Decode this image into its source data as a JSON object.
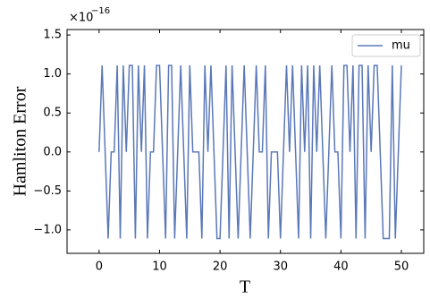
{
  "chart_data": {
    "type": "line",
    "ylabel": "Hamliton Error",
    "xlabel": "T",
    "y_offset_base": "×10",
    "y_offset_exponent": "−16",
    "x": [
      0,
      0.5,
      1,
      1.5,
      2,
      2.5,
      3,
      3.5,
      4,
      4.5,
      5,
      5.5,
      6,
      6.5,
      7,
      7.5,
      8,
      8.5,
      9,
      9.5,
      10,
      10.5,
      11,
      11.5,
      12,
      12.5,
      13,
      13.5,
      14,
      14.5,
      15,
      15.5,
      16,
      16.5,
      17,
      17.5,
      18,
      18.5,
      19,
      19.5,
      20,
      20.5,
      21,
      21.5,
      22,
      22.5,
      23,
      23.5,
      24,
      24.5,
      25,
      25.5,
      26,
      26.5,
      27,
      27.5,
      28,
      28.5,
      29,
      29.5,
      30,
      30.5,
      31,
      31.5,
      32,
      32.5,
      33,
      33.5,
      34,
      34.5,
      35,
      35.5,
      36,
      36.5,
      37,
      37.5,
      38,
      38.5,
      39,
      39.5,
      40,
      40.5,
      41,
      41.5,
      42,
      42.5,
      43,
      43.5,
      44,
      44.5,
      45,
      45.5,
      46,
      46.5,
      47,
      47.5,
      48,
      48.5,
      49,
      49.5,
      50
    ],
    "series": [
      {
        "name": "mu",
        "color": "#5a78b8",
        "values": [
          0,
          1.11,
          0,
          -1.11,
          0,
          0,
          1.11,
          -1.11,
          1.11,
          0,
          1.11,
          1.11,
          -1.11,
          1.11,
          0,
          1.11,
          -1.11,
          0,
          0,
          1.11,
          1.11,
          0,
          -1.11,
          1.11,
          1.11,
          -1.11,
          0,
          1.11,
          0,
          -1.11,
          1.11,
          0,
          0,
          0,
          -1.11,
          1.11,
          0,
          1.11,
          0,
          -1.11,
          -1.11,
          0,
          1.11,
          -1.11,
          1.11,
          0,
          -1.11,
          0,
          1.11,
          0,
          -1.11,
          0,
          1.11,
          0,
          0,
          1.11,
          -1.11,
          0,
          0,
          0,
          -1.11,
          0,
          1.11,
          0,
          1.11,
          0,
          -1.11,
          1.11,
          0,
          1.11,
          -1.11,
          1.11,
          0,
          1.11,
          0,
          -1.11,
          0,
          1.11,
          0,
          0,
          -1.11,
          1.11,
          1.11,
          0,
          1.11,
          -1.11,
          1.11,
          1.11,
          -1.11,
          1.11,
          0,
          1.11,
          1.11,
          0,
          -1.11,
          -1.11,
          -1.11,
          1.11,
          -1.11,
          0,
          1.11
        ]
      }
    ],
    "xlim": [
      -5.3,
      53.7
    ],
    "xticks": [
      0,
      10,
      20,
      30,
      40,
      50
    ],
    "ylim": [
      -1.3,
      1.57
    ],
    "yticks": [
      {
        "value": -1,
        "label": "−1.0"
      },
      {
        "value": -0.5,
        "label": "−0.5"
      },
      {
        "value": 0,
        "label": "0.0"
      },
      0.5,
      {
        "value": 1,
        "label": "1.0"
      },
      1.5
    ],
    "legend": "upper right"
  }
}
